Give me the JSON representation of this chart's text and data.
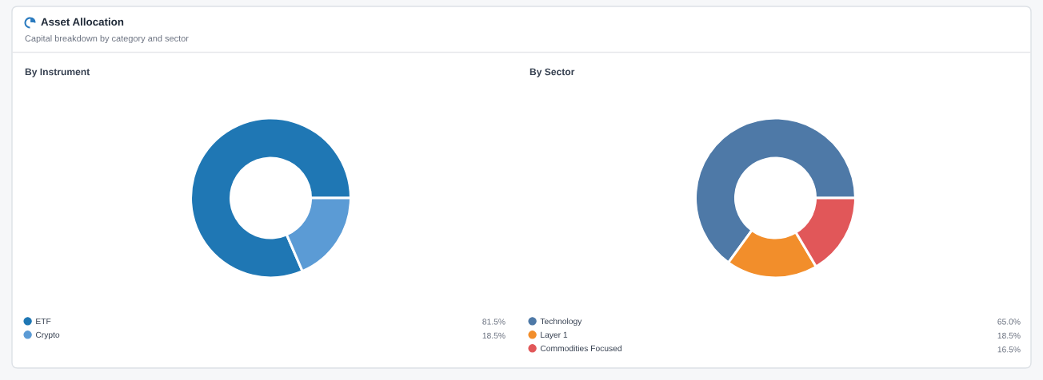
{
  "chart_data": [
    {
      "type": "other",
      "title": "Asset Allocation",
      "subtitle": "Capital breakdown by category and sector"
    },
    {
      "type": "donut",
      "title": "By Instrument",
      "categories": [
        "ETF",
        "Crypto"
      ],
      "values": [
        81.5,
        18.5
      ],
      "colors": [
        "#1f77b4",
        "#5b9bd5"
      ],
      "value_labels": [
        "81.5%",
        "18.5%"
      ],
      "legend": "bottom"
    },
    {
      "type": "donut",
      "title": "By Sector",
      "categories": [
        "Technology",
        "Layer 1",
        "Commodities Focused"
      ],
      "values": [
        65.0,
        18.5,
        16.5
      ],
      "colors": [
        "#4e79a7",
        "#f28e2b",
        "#e15759"
      ],
      "value_labels": [
        "65.0%",
        "18.5%",
        "16.5%"
      ],
      "legend": "bottom"
    }
  ]
}
